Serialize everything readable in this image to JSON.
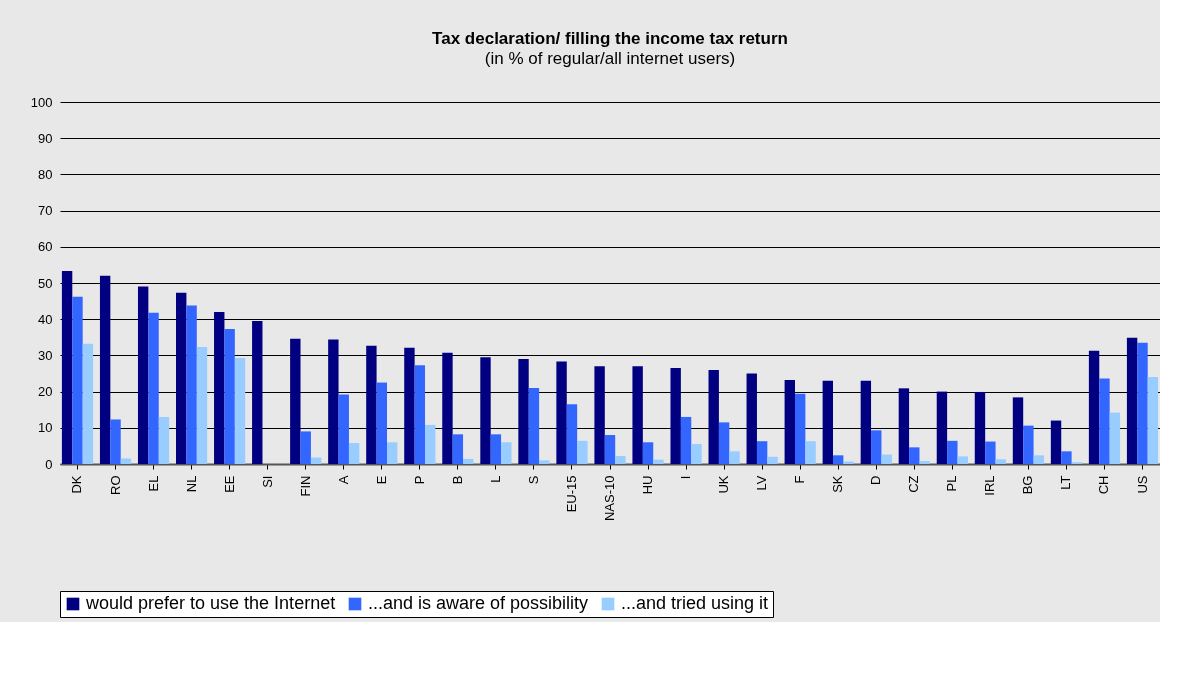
{
  "chart_data": {
    "type": "bar",
    "title": "Tax declaration/ filling the income tax return",
    "subtitle": "(in % of regular/all internet users)",
    "categories": [
      "DK",
      "RO",
      "EL",
      "NL",
      "EE",
      "SI",
      "FIN",
      "A",
      "E",
      "P",
      "B",
      "L",
      "S",
      "EU-15",
      "NAS-10",
      "HU",
      "I",
      "UK",
      "LV",
      "F",
      "SK",
      "D",
      "CZ",
      "PL",
      "IRL",
      "BG",
      "LT",
      "CH",
      "US"
    ],
    "series": [
      {
        "name": "would prefer to use the Internet",
        "color": "#000080",
        "values": [
          53.3,
          52,
          49,
          47.3,
          42,
          39.5,
          34.6,
          34.4,
          32.7,
          32.1,
          30.7,
          29.5,
          29,
          28.3,
          27,
          27,
          26.5,
          26,
          25,
          23.2,
          23,
          23,
          20.9,
          20,
          19.9,
          18.4,
          12,
          31.3,
          34.9
        ]
      },
      {
        "name": "...and is aware of possibility",
        "color": "#3366ff",
        "values": [
          46.2,
          12.3,
          41.8,
          43.8,
          37.3,
          null,
          9,
          19.2,
          22.5,
          27.3,
          8.2,
          8.2,
          21,
          16.5,
          8,
          6,
          13,
          11.5,
          6.3,
          19.4,
          2.4,
          9.3,
          4.6,
          6.4,
          6.2,
          10.6,
          3.5,
          23.6,
          33.5
        ]
      },
      {
        "name": "...and tried using it",
        "color": "#99ccff",
        "values": [
          33.2,
          1.5,
          13,
          32.3,
          29.3,
          null,
          1.8,
          5.8,
          6,
          10.8,
          1.4,
          6,
          1,
          6.4,
          2.2,
          1.2,
          5.5,
          3.5,
          2,
          6.3,
          0.7,
          2.6,
          0.8,
          2.1,
          1.3,
          2.4,
          0.5,
          14.2,
          24
        ]
      }
    ],
    "ylim": [
      0,
      100
    ],
    "yticks": [
      0,
      10,
      20,
      30,
      40,
      50,
      60,
      70,
      80,
      90,
      100
    ],
    "grid": "y",
    "legend": "bottom"
  }
}
